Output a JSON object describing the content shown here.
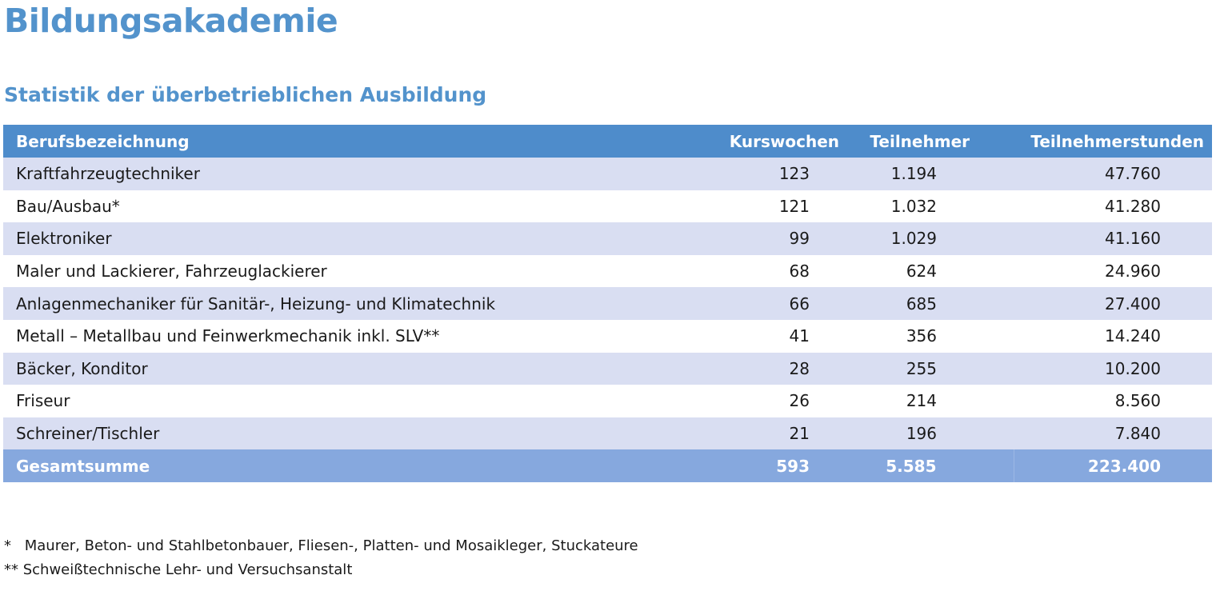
{
  "page": {
    "title": "Bildungsakademie",
    "subtitle": "Statistik der überbetrieblichen Ausbildung"
  },
  "table": {
    "headers": {
      "name": "Berufsbezeichnung",
      "kurswochen": "Kurswochen",
      "teilnehmer": "Teilnehmer",
      "teilnehmerstunden": "Teilnehmerstunden"
    },
    "rows": [
      {
        "name": "Kraftfahrzeugtechniker",
        "kurswochen": "123",
        "teilnehmer": "1.194",
        "teilnehmerstunden": "47.760"
      },
      {
        "name": "Bau/Ausbau*",
        "kurswochen": "121",
        "teilnehmer": "1.032",
        "teilnehmerstunden": "41.280"
      },
      {
        "name": "Elektroniker",
        "kurswochen": "99",
        "teilnehmer": "1.029",
        "teilnehmerstunden": "41.160"
      },
      {
        "name": "Maler und Lackierer, Fahrzeuglackierer",
        "kurswochen": "68",
        "teilnehmer": "624",
        "teilnehmerstunden": "24.960"
      },
      {
        "name": "Anlagenmechaniker für Sanitär-, Heizung- und Klimatechnik",
        "kurswochen": "66",
        "teilnehmer": "685",
        "teilnehmerstunden": "27.400"
      },
      {
        "name": "Metall – Metallbau und Feinwerkmechanik inkl. SLV**",
        "kurswochen": "41",
        "teilnehmer": "356",
        "teilnehmerstunden": "14.240"
      },
      {
        "name": "Bäcker, Konditor",
        "kurswochen": "28",
        "teilnehmer": "255",
        "teilnehmerstunden": "10.200"
      },
      {
        "name": "Friseur",
        "kurswochen": "26",
        "teilnehmer": "214",
        "teilnehmerstunden": "8.560"
      },
      {
        "name": "Schreiner/Tischler",
        "kurswochen": "21",
        "teilnehmer": "196",
        "teilnehmerstunden": "7.840"
      }
    ],
    "total": {
      "name": "Gesamtsumme",
      "kurswochen": "593",
      "teilnehmer": "5.585",
      "teilnehmerstunden": "223.400"
    }
  },
  "footnotes": [
    {
      "mark": "*",
      "text": "Maurer, Beton- und Stahlbetonbauer, Fliesen-, Platten- und Mosaikleger, Stuckateure"
    },
    {
      "mark": "**",
      "text": "Schweißtechnische Lehr- und Versuchsanstalt"
    }
  ],
  "colors": {
    "title": "#5393cc",
    "header_bg": "#4e8ccb",
    "row_band": "#d9def2",
    "total_bg": "#86a8de"
  }
}
